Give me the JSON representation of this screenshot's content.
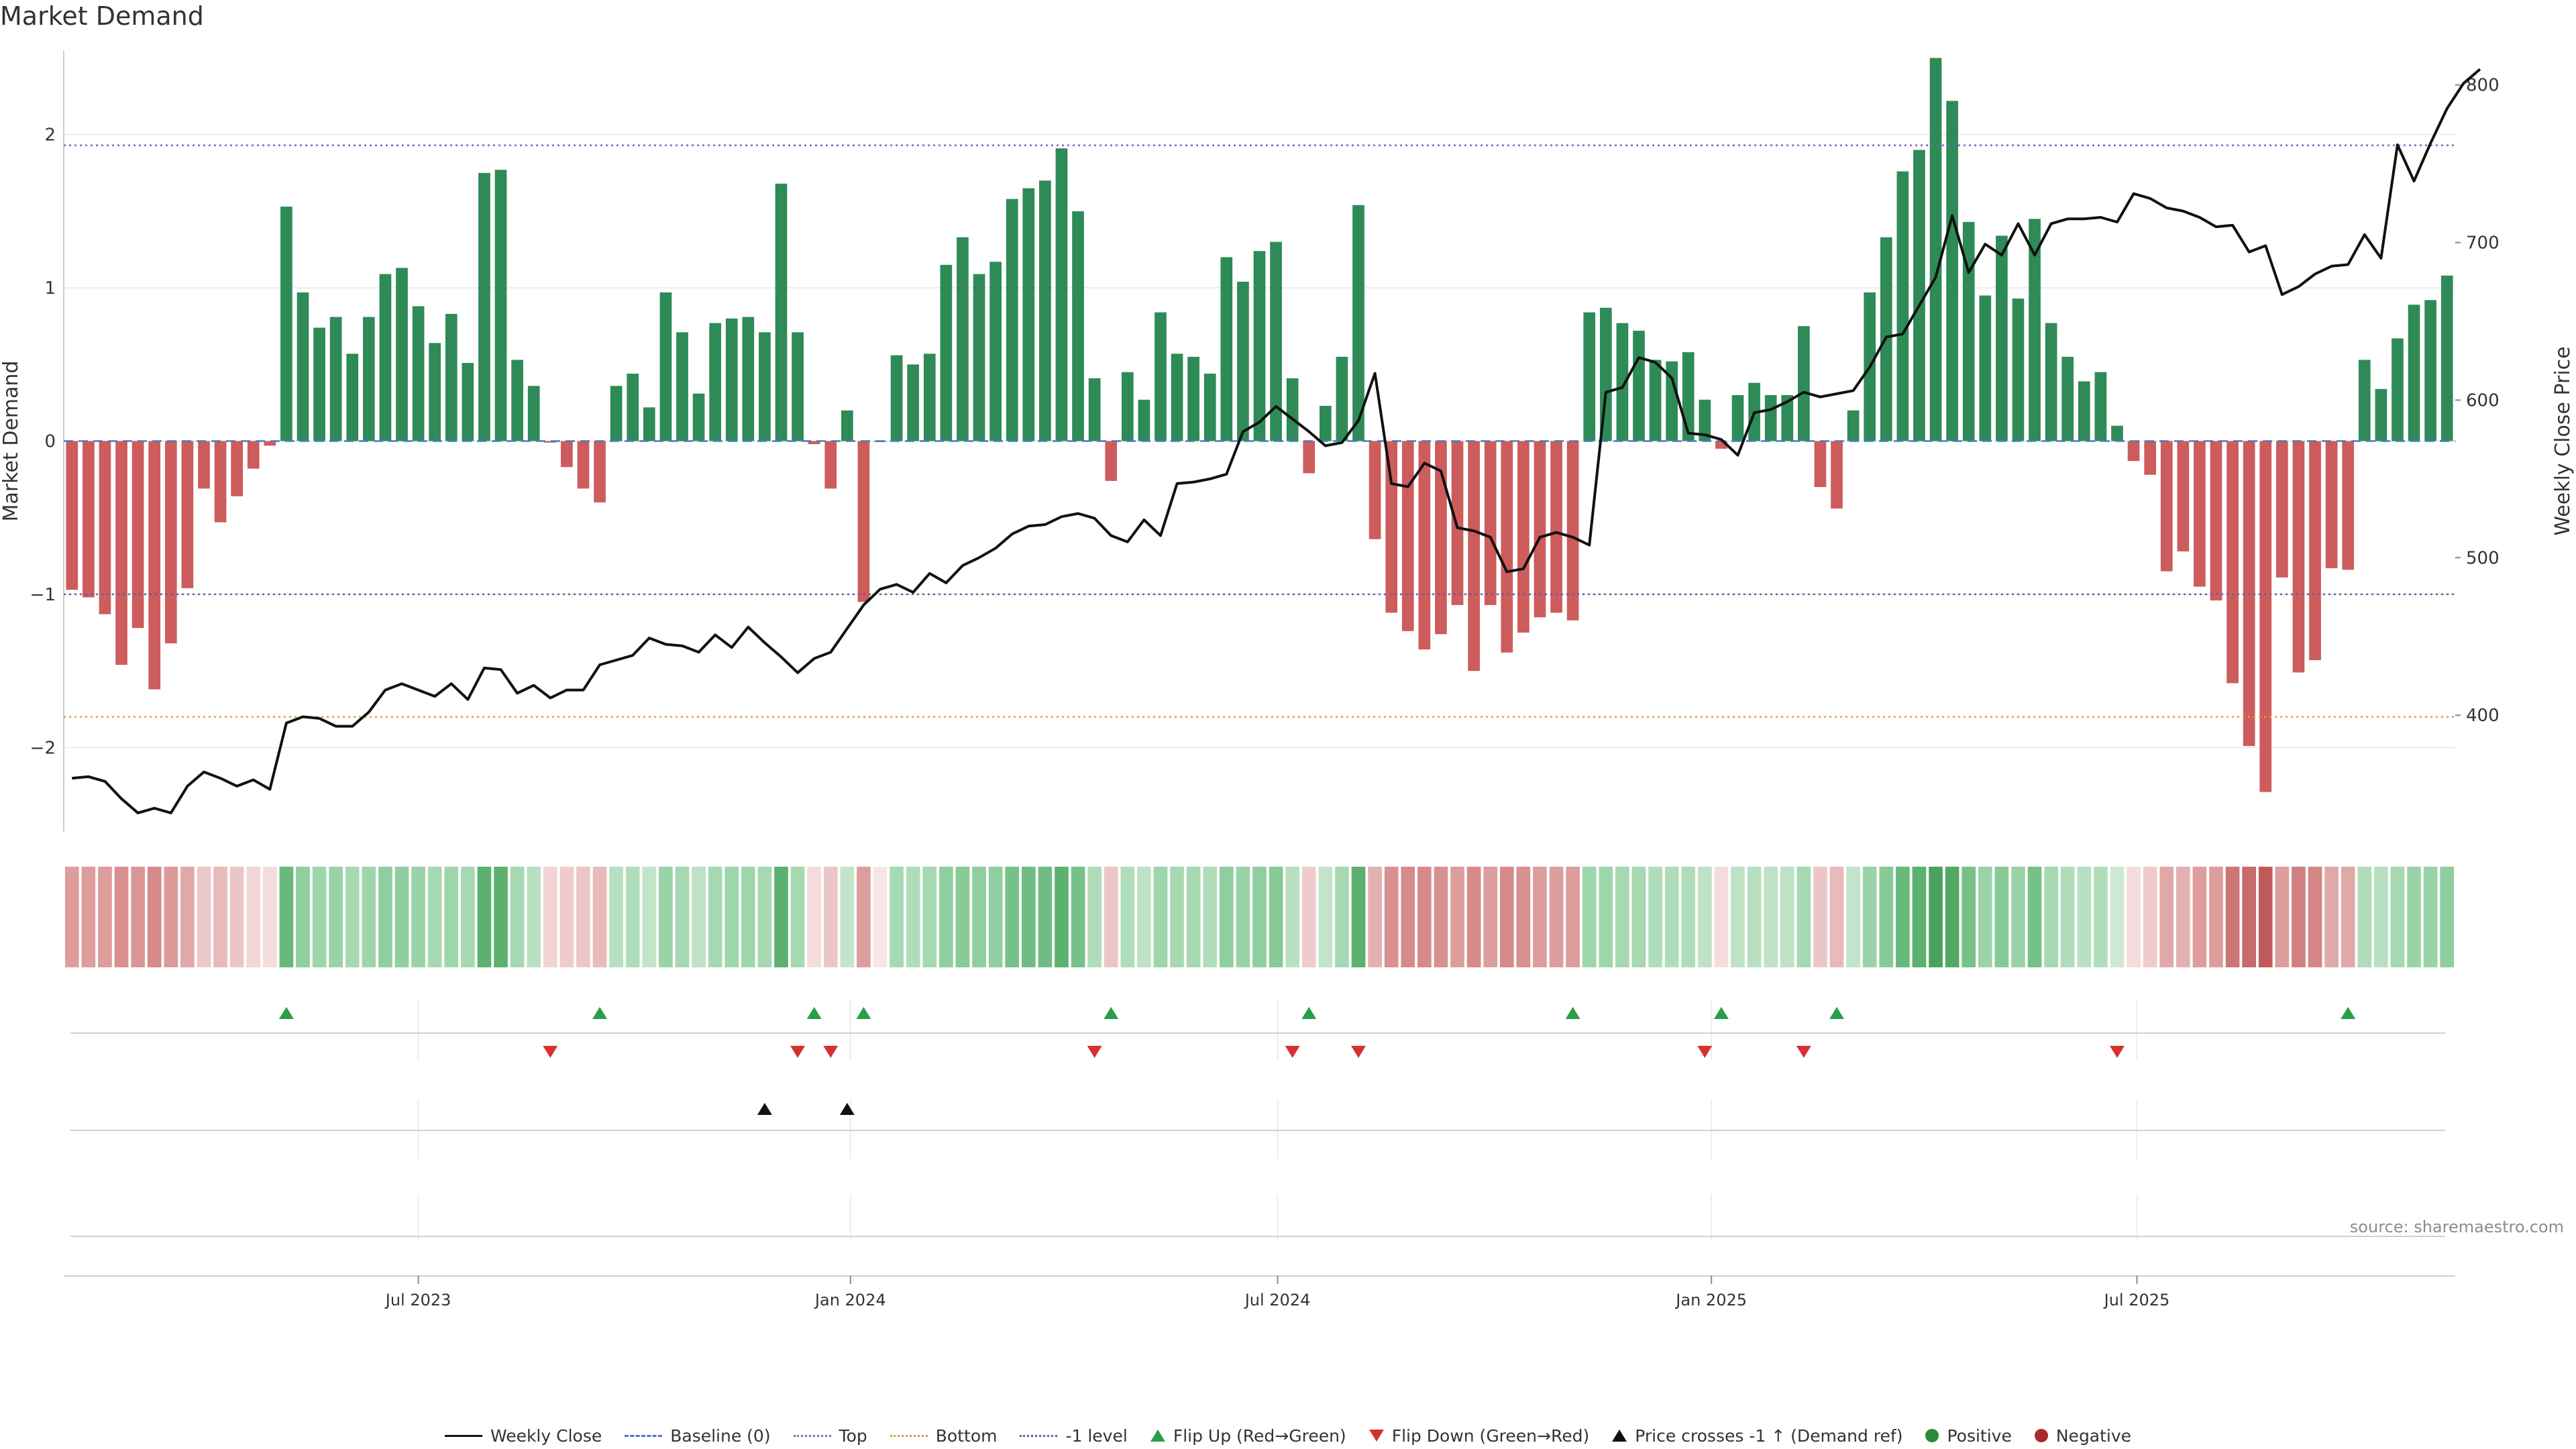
{
  "title": "Market Demand",
  "source": "source: sharemaestro.com",
  "chart_data": {
    "type": "bar",
    "title": "Market Demand",
    "ylabel": "Market Demand",
    "y2label": "Weekly Close Price",
    "ylim": [
      -2.55,
      2.55
    ],
    "y2lim": [
      326,
      822
    ],
    "yticks": [
      -2,
      -1,
      0,
      1,
      2
    ],
    "y2ticks": [
      400,
      500,
      600,
      700,
      800
    ],
    "x_start_week": 0,
    "xtick_labels": [
      {
        "label": "Jul 2023",
        "week": 21.5
      },
      {
        "label": "Jan 2024",
        "week": 47.7
      },
      {
        "label": "Jul 2024",
        "week": 73.6
      },
      {
        "label": "Jan 2025",
        "week": 99.9
      },
      {
        "label": "Jul 2025",
        "week": 125.7
      }
    ],
    "reference_lines": [
      {
        "name": "Top",
        "value": 1.93,
        "color": "#7b68b8"
      },
      {
        "name": "Bottom",
        "value": -1.8,
        "color": "#d4a24a"
      },
      {
        "name": "-1 level",
        "value": -1.0,
        "color": "#6a5a9a"
      },
      {
        "name": "Baseline (0)",
        "value": 0,
        "color": "#4a78c2"
      }
    ],
    "demand": [
      -0.97,
      -1.02,
      -1.13,
      -1.46,
      -1.22,
      -1.62,
      -1.32,
      -0.96,
      -0.31,
      -0.53,
      -0.36,
      -0.18,
      -0.03,
      1.53,
      0.97,
      0.74,
      0.81,
      0.57,
      0.81,
      1.09,
      1.13,
      0.88,
      0.64,
      0.83,
      0.51,
      1.75,
      1.77,
      0.53,
      0.36,
      -0.01,
      -0.17,
      -0.31,
      -0.4,
      0.36,
      0.44,
      0.22,
      0.97,
      0.71,
      0.31,
      0.77,
      0.8,
      0.81,
      0.71,
      1.68,
      0.71,
      -0.02,
      -0.31,
      0.2,
      -1.05,
      0.0,
      0.56,
      0.5,
      0.57,
      1.15,
      1.33,
      1.09,
      1.17,
      1.58,
      1.65,
      1.7,
      1.91,
      1.5,
      0.41,
      -0.26,
      0.45,
      0.27,
      0.84,
      0.57,
      0.55,
      0.44,
      1.2,
      1.04,
      1.24,
      1.3,
      0.41,
      -0.21,
      0.23,
      0.55,
      1.54,
      -0.64,
      -1.12,
      -1.24,
      -1.36,
      -1.26,
      -1.07,
      -1.5,
      -1.07,
      -1.38,
      -1.25,
      -1.15,
      -1.12,
      -1.17,
      0.84,
      0.87,
      0.77,
      0.72,
      0.53,
      0.52,
      0.58,
      0.27,
      -0.05,
      0.3,
      0.38,
      0.3,
      0.3,
      0.75,
      -0.3,
      -0.44,
      0.2,
      0.97,
      1.33,
      1.76,
      1.9,
      2.5,
      2.22,
      1.43,
      0.95,
      1.34,
      0.93,
      1.45,
      0.77,
      0.55,
      0.39,
      0.45,
      0.1,
      -0.13,
      -0.22,
      -0.85,
      -0.72,
      -0.95,
      -1.04,
      -1.58,
      -1.99,
      -2.29,
      -0.89,
      -1.51,
      -1.43,
      -0.83,
      -0.84,
      0.53,
      0.34,
      0.67,
      0.89,
      0.92,
      1.08
    ],
    "close": [
      360,
      361,
      358,
      347,
      338,
      341,
      338,
      355,
      364,
      360,
      355,
      359,
      353,
      395,
      399,
      398,
      393,
      393,
      402,
      416,
      420,
      416,
      412,
      420,
      410,
      430,
      429,
      414,
      419,
      411,
      416,
      416,
      432,
      435,
      438,
      449,
      445,
      444,
      440,
      451,
      443,
      456,
      446,
      437,
      427,
      436,
      440,
      455,
      470,
      480,
      483,
      478,
      490,
      484,
      495,
      500,
      506,
      515,
      520,
      521,
      526,
      528,
      525,
      514,
      510,
      524,
      514,
      547,
      548,
      550,
      553,
      580,
      586,
      596,
      588,
      580,
      571,
      573,
      587,
      617,
      547,
      545,
      560,
      555,
      519,
      517,
      513,
      491,
      493,
      513,
      516,
      513,
      508,
      605,
      608,
      627,
      624,
      614,
      579,
      578,
      575,
      565,
      592,
      594,
      599,
      605,
      602,
      604,
      606,
      621,
      640,
      642,
      660,
      678,
      717,
      681,
      699,
      692,
      712,
      692,
      712,
      715,
      715,
      716,
      713,
      731,
      728,
      722,
      720,
      716,
      710,
      711,
      694,
      698,
      667,
      672,
      680,
      685,
      686,
      705,
      690,
      762,
      739,
      763,
      785,
      801,
      810
    ],
    "heat_colors": [
      "#dd9d9d",
      "#dd9d9d",
      "#dd9d9d",
      "#d99090",
      "#da9696",
      "#d68a8a",
      "#dc9a9a",
      "#e1a8a8",
      "#edc8c8",
      "#e8baba",
      "#ecc6c6",
      "#f3d6d6",
      "#f5dcdc",
      "#68b97a",
      "#8fce9f",
      "#9ed6ac",
      "#9ad3a8",
      "#a6d9b2",
      "#9ed6ac",
      "#8fce9f",
      "#8fce9f",
      "#9ad3a8",
      "#a6d9b2",
      "#9ed6ac",
      "#a6d9b2",
      "#5cb16e",
      "#5cb16e",
      "#a6d9b2",
      "#b8e0c0",
      "#f2d4d4",
      "#efcbcb",
      "#ecc6c6",
      "#e8baba",
      "#b8e0c0",
      "#b0ddb9",
      "#c2e5c9",
      "#9ad3a8",
      "#a6d9b2",
      "#bde2c5",
      "#a6d9b2",
      "#9ed6ac",
      "#9ed6ac",
      "#a6d9b2",
      "#5cb16e",
      "#a6d9b2",
      "#f5dcdc",
      "#ecc6c6",
      "#c2e5c9",
      "#dd9d9d",
      "#f8e6e6",
      "#a6d9b2",
      "#b0ddb9",
      "#a6d9b2",
      "#8fce9f",
      "#86ca96",
      "#8fce9f",
      "#8fce9f",
      "#76c188",
      "#6fbd82",
      "#6fbd82",
      "#5cb16e",
      "#76c188",
      "#b0ddb9",
      "#ecc6c6",
      "#b0ddb9",
      "#bde2c5",
      "#9ed6ac",
      "#a6d9b2",
      "#a6d9b2",
      "#b0ddb9",
      "#8fce9f",
      "#9ad3a8",
      "#8fce9f",
      "#86ca96",
      "#b8e0c0",
      "#efcbcb",
      "#c2e5c9",
      "#a6d9b2",
      "#5cb16e",
      "#e4b1b1",
      "#d99090",
      "#d68a8a",
      "#d68a8a",
      "#d99090",
      "#dd9d9d",
      "#d68a8a",
      "#dd9d9d",
      "#d68a8a",
      "#d99090",
      "#dd9d9d",
      "#dd9d9d",
      "#dd9d9d",
      "#9ed6ac",
      "#9ed6ac",
      "#a6d9b2",
      "#a6d9b2",
      "#b0ddb9",
      "#b0ddb9",
      "#b0ddb9",
      "#bde2c5",
      "#f5dcdc",
      "#bde2c5",
      "#b8e0c0",
      "#bde2c5",
      "#bde2c5",
      "#a6d9b2",
      "#ecc6c6",
      "#e8baba",
      "#c2e5c9",
      "#9ad3a8",
      "#86ca96",
      "#68b97a",
      "#5cb16e",
      "#4aa35c",
      "#52a964",
      "#76c188",
      "#9ad3a8",
      "#86ca96",
      "#9ad3a8",
      "#76c188",
      "#a6d9b2",
      "#b0ddb9",
      "#b8e0c0",
      "#b0ddb9",
      "#cde9d3",
      "#f5dcdc",
      "#efcbcb",
      "#e1a8a8",
      "#e4b1b1",
      "#dd9d9d",
      "#dd9d9d",
      "#cc7777",
      "#c76a6a",
      "#c05a5a",
      "#dd9d9d",
      "#d08080",
      "#d48585",
      "#e1a8a8",
      "#e1a8a8",
      "#b0ddb9",
      "#b8e0c0",
      "#a6d9b2",
      "#9ad3a8",
      "#9ad3a8",
      "#8fce9f"
    ],
    "flip_up_weeks": [
      13,
      32,
      45,
      48,
      63,
      75,
      91,
      100,
      107,
      138
    ],
    "flip_down_weeks": [
      29,
      44,
      46,
      62,
      74,
      78,
      99,
      105,
      124
    ],
    "price_cross_weeks": [
      42,
      47
    ],
    "xtick_positions_weeks": [
      21.5,
      47.7,
      73.6,
      99.9,
      125.7
    ]
  },
  "legend": {
    "weekly_close": "Weekly Close",
    "baseline": "Baseline (0)",
    "top": "Top",
    "bottom": "Bottom",
    "minus1": "-1 level",
    "flip_up": "Flip Up (Red→Green)",
    "flip_down": "Flip Down (Green→Red)",
    "price_cross": "Price crosses -1 ↑ (Demand ref)",
    "positive": "Positive",
    "negative": "Negative"
  },
  "colors": {
    "positive_bar": "#2e8b57",
    "negative_bar": "#cd5c5c",
    "price_line": "#111111"
  }
}
